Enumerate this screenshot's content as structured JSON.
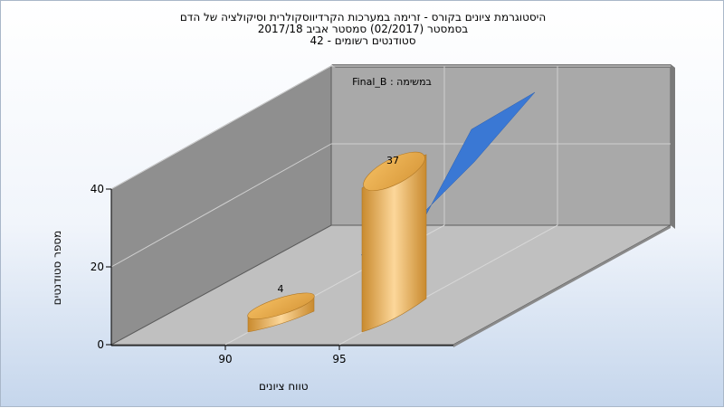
{
  "chart_data": {
    "type": "bar",
    "title": [
      "היסטוגרמת ציונים בקורס - זרימה במערכות הקרדיווסקולרית וסיקולציה של הדם",
      "בסמסטר  (02/2017)  סמסטר אביב 2017/18",
      "סטודנטים רשומים - 42"
    ],
    "xlabel": "טווח ציונים",
    "ylabel": "מספר סטודנטים",
    "categories": [
      "90",
      "95"
    ],
    "series": [
      {
        "name": "",
        "values": [
          4,
          37
        ],
        "color": "#e8a849"
      },
      {
        "name": "Final_B : במשימה",
        "values": [
          null,
          37
        ],
        "color": "#3a78d4"
      }
    ],
    "yticks": [
      "0",
      "20",
      "40"
    ],
    "ylim": [
      0,
      40
    ],
    "data_labels": [
      "4",
      "37"
    ],
    "legend": "top-left",
    "grid": true
  }
}
